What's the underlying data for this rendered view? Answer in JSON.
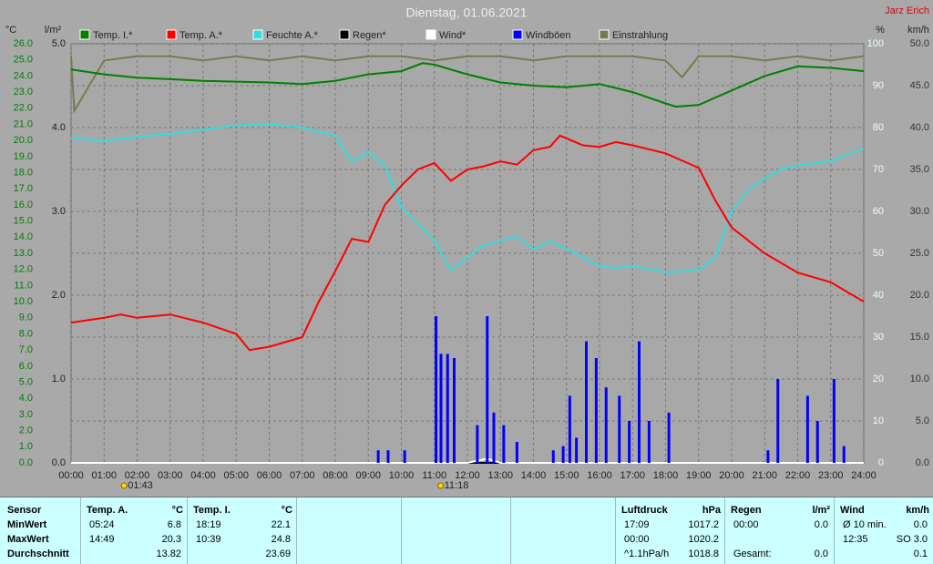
{
  "chart_data": {
    "type": "line",
    "title": "Dienstag, 01.06.2021",
    "author": "Jarz Erich",
    "y_unit": "°C",
    "y3_unit": "l/m²",
    "y2_unit": "%",
    "y4_unit": "km/h",
    "xlim": [
      0,
      24
    ],
    "xticks": [
      {
        "value": 0,
        "label": "00:00"
      },
      {
        "value": 1,
        "label": "01:00"
      },
      {
        "value": 2,
        "label": "02:00"
      },
      {
        "value": 3,
        "label": "03:00"
      },
      {
        "value": 4,
        "label": "04:00"
      },
      {
        "value": 5,
        "label": "05:00"
      },
      {
        "value": 6,
        "label": "06:00"
      },
      {
        "value": 7,
        "label": "07:00"
      },
      {
        "value": 8,
        "label": "08:00"
      },
      {
        "value": 9,
        "label": "09:00"
      },
      {
        "value": 10,
        "label": "10:00"
      },
      {
        "value": 11,
        "label": "11:00"
      },
      {
        "value": 12,
        "label": "12:00"
      },
      {
        "value": 13,
        "label": "13:00"
      },
      {
        "value": 14,
        "label": "14:00"
      },
      {
        "value": 15,
        "label": "15:00"
      },
      {
        "value": 16,
        "label": "16:00"
      },
      {
        "value": 17,
        "label": "17:00"
      },
      {
        "value": 18,
        "label": "18:00"
      },
      {
        "value": 19,
        "label": "19:00"
      },
      {
        "value": 20,
        "label": "20:00"
      },
      {
        "value": 21,
        "label": "21:00"
      },
      {
        "value": 22,
        "label": "22:00"
      },
      {
        "value": 23,
        "label": "23:00"
      },
      {
        "value": 24,
        "label": "24:00"
      }
    ],
    "ylim": [
      0,
      26
    ],
    "yticks": [
      {
        "value": 0,
        "label": "0.0"
      },
      {
        "value": 1,
        "label": "1.0"
      },
      {
        "value": 2,
        "label": "2.0"
      },
      {
        "value": 3,
        "label": "3.0"
      },
      {
        "value": 4,
        "label": "4.0"
      },
      {
        "value": 5,
        "label": "5.0"
      },
      {
        "value": 6,
        "label": "6.0"
      },
      {
        "value": 7,
        "label": "7.0"
      },
      {
        "value": 8,
        "label": "8.0"
      },
      {
        "value": 9,
        "label": "9.0"
      },
      {
        "value": 10,
        "label": "10.0"
      },
      {
        "value": 11,
        "label": "11.0"
      },
      {
        "value": 12,
        "label": "12.0"
      },
      {
        "value": 13,
        "label": "13.0"
      },
      {
        "value": 14,
        "label": "14.0"
      },
      {
        "value": 15,
        "label": "15.0"
      },
      {
        "value": 16,
        "label": "16.0"
      },
      {
        "value": 17,
        "label": "17.0"
      },
      {
        "value": 18,
        "label": "18.0"
      },
      {
        "value": 19,
        "label": "19.0"
      },
      {
        "value": 20,
        "label": "20.0"
      },
      {
        "value": 21,
        "label": "21.0"
      },
      {
        "value": 22,
        "label": "22.0"
      },
      {
        "value": 23,
        "label": "23.0"
      },
      {
        "value": 24,
        "label": "24.0"
      },
      {
        "value": 25,
        "label": "25.0"
      },
      {
        "value": 26,
        "label": "26.0"
      }
    ],
    "y3lim": [
      0,
      5
    ],
    "y3ticks": [
      {
        "value": 0,
        "label": "0.0"
      },
      {
        "value": 1,
        "label": "1.0"
      },
      {
        "value": 2,
        "label": "2.0"
      },
      {
        "value": 3,
        "label": "3.0"
      },
      {
        "value": 4,
        "label": "4.0"
      },
      {
        "value": 5,
        "label": "5.0"
      }
    ],
    "y2lim": [
      0,
      100
    ],
    "y2ticks": [
      0,
      10,
      20,
      30,
      40,
      50,
      60,
      70,
      80,
      90,
      100
    ],
    "y4lim": [
      0,
      50
    ],
    "y4ticks": [
      {
        "value": 0,
        "label": "0.0"
      },
      {
        "value": 5,
        "label": "5.0"
      },
      {
        "value": 10,
        "label": "10.0"
      },
      {
        "value": 15,
        "label": "15.0"
      },
      {
        "value": 20,
        "label": "20.0"
      },
      {
        "value": 25,
        "label": "25.0"
      },
      {
        "value": 30,
        "label": "30.0"
      },
      {
        "value": 35,
        "label": "35.0"
      },
      {
        "value": 40,
        "label": "40.0"
      },
      {
        "value": 45,
        "label": "45.0"
      },
      {
        "value": 50,
        "label": "50.0"
      }
    ],
    "grid": true,
    "series": [
      {
        "name": "Temp. I.*",
        "color": "#008000",
        "axis": "y",
        "x": [
          0,
          1,
          2,
          3,
          4,
          5,
          6,
          7,
          8,
          9,
          10,
          10.65,
          11,
          12,
          13,
          14,
          15,
          16,
          17,
          18,
          18.3,
          19,
          20,
          21,
          22,
          23,
          24
        ],
        "values": [
          24.4,
          24.1,
          23.9,
          23.8,
          23.7,
          23.65,
          23.6,
          23.5,
          23.7,
          24.1,
          24.3,
          24.8,
          24.7,
          24.1,
          23.6,
          23.4,
          23.3,
          23.5,
          23.0,
          22.3,
          22.1,
          22.2,
          23.1,
          24.0,
          24.6,
          24.5,
          24.3
        ]
      },
      {
        "name": "Temp. A.*",
        "color": "#ff0000",
        "axis": "y",
        "x": [
          0,
          1,
          1.5,
          2,
          3,
          4,
          5,
          5.4,
          6,
          7,
          7.5,
          8,
          8.5,
          9,
          9.5,
          10,
          10.5,
          11,
          11.5,
          12,
          12.5,
          13,
          13.5,
          14,
          14.5,
          14.8,
          15.5,
          16,
          16.5,
          17,
          18,
          19,
          19.5,
          20,
          21,
          22,
          23,
          24
        ],
        "values": [
          8.7,
          9.0,
          9.2,
          9.0,
          9.2,
          8.7,
          8.0,
          7.0,
          7.2,
          7.8,
          10.0,
          11.9,
          13.9,
          13.7,
          16.0,
          17.2,
          18.2,
          18.6,
          17.5,
          18.2,
          18.4,
          18.7,
          18.5,
          19.4,
          19.6,
          20.3,
          19.7,
          19.6,
          19.9,
          19.7,
          19.2,
          18.3,
          16.3,
          14.6,
          13.0,
          11.8,
          11.2,
          10.0
        ]
      },
      {
        "name": "Feuchte A.*",
        "color": "#33dddd",
        "axis": "y2",
        "x": [
          0,
          1,
          2,
          3,
          4,
          5,
          6,
          7,
          8,
          8.5,
          9,
          9.5,
          10,
          10.5,
          11,
          11.5,
          12,
          12.5,
          13,
          13.5,
          14,
          14.5,
          15,
          15.5,
          16,
          16.5,
          17,
          18,
          19,
          19.5,
          20,
          20.5,
          21,
          21.5,
          22,
          23,
          24
        ],
        "values": [
          77.5,
          76.8,
          77.8,
          78.5,
          79.5,
          80.5,
          80.8,
          80,
          78,
          72,
          74,
          71,
          61,
          57,
          53,
          46,
          49,
          52,
          53,
          54,
          51,
          53,
          51,
          49,
          47,
          46.5,
          47,
          45.5,
          46,
          49,
          60,
          65,
          68,
          70,
          71,
          72,
          75
        ]
      },
      {
        "name": "Regen*",
        "color": "#000000",
        "axis": "y3",
        "x": [
          0,
          24
        ],
        "values": [
          0,
          0
        ]
      },
      {
        "name": "Wind*",
        "color": "#ffffff",
        "axis": "y4",
        "x": [
          0,
          12,
          12.6,
          13,
          24
        ],
        "values": [
          0,
          0,
          0.5,
          0,
          0
        ]
      },
      {
        "name": "Windböen",
        "color": "#0000ff",
        "axis": "y4",
        "style": "spikes",
        "x": [
          9.3,
          9.6,
          10.1,
          11.05,
          11.2,
          11.4,
          11.6,
          12.3,
          12.6,
          12.8,
          13.1,
          13.5,
          14.6,
          14.9,
          15.1,
          15.3,
          15.6,
          15.9,
          16.2,
          16.6,
          16.9,
          17.2,
          17.5,
          18.1,
          21.1,
          21.4,
          22.3,
          22.6,
          23.1,
          23.4
        ],
        "values": [
          1.5,
          1.5,
          1.5,
          17.5,
          13,
          13,
          12.5,
          4.5,
          17.5,
          6,
          4.5,
          2.5,
          1.5,
          2,
          8,
          3,
          14.5,
          12.5,
          9,
          8,
          5,
          14.5,
          5,
          6,
          1.5,
          10,
          8,
          5,
          10,
          2
        ]
      },
      {
        "name": "Einstrahlung",
        "color": "#7a7a50",
        "axis": "y2",
        "x": [
          0,
          0.1,
          1,
          2,
          3,
          4,
          5,
          6,
          7,
          8,
          9,
          10,
          11,
          12,
          13,
          14,
          15,
          16,
          17,
          18,
          18.5,
          19,
          20,
          21,
          22,
          23,
          24
        ],
        "values": [
          97,
          84,
          96,
          97,
          97,
          96,
          97,
          96,
          97,
          96,
          97,
          97,
          96,
          97,
          97,
          96,
          97,
          97,
          97,
          96,
          92,
          97,
          97,
          96,
          97,
          96,
          97
        ]
      }
    ],
    "annotations": [
      {
        "x": 1.7167,
        "label": "01:43"
      },
      {
        "x": 11.3,
        "label": "11:18"
      }
    ]
  },
  "stats": {
    "sensor_label": "Sensor",
    "row_labels": [
      "MinWert",
      "MaxWert",
      "Durchschnitt"
    ],
    "sections": [
      {
        "name": "Temp. A.",
        "unit": "°C",
        "rows": [
          [
            "05:24",
            "6.8"
          ],
          [
            "14:49",
            "20.3"
          ],
          [
            null,
            "13.82"
          ]
        ]
      },
      {
        "name": "Temp. I.",
        "unit": "°C",
        "rows": [
          [
            "18:19",
            "22.1"
          ],
          [
            "10:39",
            "24.8"
          ],
          [
            null,
            "23.69"
          ]
        ]
      },
      {
        "name": "Luftdruck",
        "unit": "hPa",
        "rows": [
          [
            "17:09",
            "1017.2"
          ],
          [
            "00:00",
            "1020.2"
          ],
          [
            "^1.1hPa/h",
            "1018.8"
          ]
        ]
      },
      {
        "name": "Regen",
        "unit": "l/m²",
        "rows": [
          [
            "00:00",
            "0.0"
          ],
          null,
          [
            "Gesamt:",
            "0.0"
          ]
        ]
      },
      {
        "name": "Wind",
        "unit": "km/h",
        "rows": [
          [
            "Ø 10 min.",
            "0.0"
          ],
          [
            "12:35",
            "SO 3.0"
          ],
          [
            null,
            "0.1"
          ]
        ]
      }
    ]
  }
}
